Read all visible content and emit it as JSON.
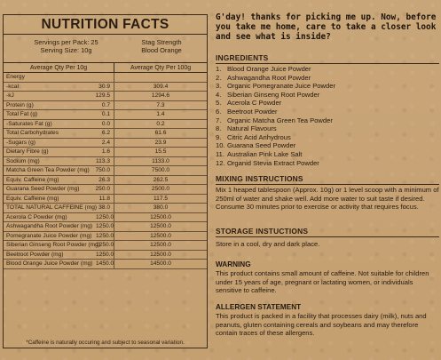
{
  "nutrition": {
    "title": "NUTRITION FACTS",
    "servings_per_pack": "Servings per Pack: 25",
    "serving_size": "Serving Size: 10g",
    "product_line1": "Stag Strength",
    "product_line2": "Blood Orange",
    "col_per_serve": "Average Qty Per 10g",
    "col_per_100": "Average Qty Per 100g",
    "rows": [
      {
        "name": "Energy",
        "serve": "",
        "per100": ""
      },
      {
        "name": "-kcal",
        "serve": "30.9",
        "per100": "309.4"
      },
      {
        "name": "-kJ",
        "serve": "129.5",
        "per100": "1294.6"
      },
      {
        "name": "Protein (g)",
        "serve": "0.7",
        "per100": "7.3"
      },
      {
        "name": "Total Fat (g)",
        "serve": "0.1",
        "per100": "1.4"
      },
      {
        "name": "-Saturates Fat (g)",
        "serve": "0.0",
        "per100": "0.2"
      },
      {
        "name": "Total Carbohydrates",
        "serve": "6.2",
        "per100": "61.6"
      },
      {
        "name": "-Sugars (g)",
        "serve": "2.4",
        "per100": "23.9"
      },
      {
        "name": "Dietary Fibre (g)",
        "serve": "1.6",
        "per100": "15.5"
      },
      {
        "name": "Sodium (mg)",
        "serve": "113.3",
        "per100": "1133.0"
      },
      {
        "name": "Matcha Green Tea Powder (mg)",
        "serve": "750.0",
        "per100": "7500.0"
      },
      {
        "name": "Equiv. Caffeine (mg)",
        "serve": "26.3",
        "per100": "262.5"
      },
      {
        "name": "Guarana Seed Powder (mg)",
        "serve": "250.0",
        "per100": "2500.0"
      },
      {
        "name": "Equiv. Caffeine (mg)",
        "serve": "11.8",
        "per100": "117.5"
      },
      {
        "name": "TOTAL NATURAL CAFFEINE (mg)",
        "serve": "38.0",
        "per100": "380.0",
        "wide": true
      },
      {
        "name": "Acerola C Powder (mg)",
        "serve": "1250.0",
        "per100": "12500.0",
        "wide": true
      },
      {
        "name": "Ashwagandha Root Powder (mg)",
        "serve": "1250.0",
        "per100": "12500.0",
        "wide": true
      },
      {
        "name": "Pomegranate Juice Powder (mg)",
        "serve": "1250.0",
        "per100": "12500.0",
        "wide": true
      },
      {
        "name": "Siberian Ginseng Root Powder (mg)",
        "serve": "1250.0",
        "per100": "12500.0",
        "wide": true
      },
      {
        "name": "Beetroot Powder (mg)",
        "serve": "1250.0",
        "per100": "12500.0",
        "wide": true
      },
      {
        "name": "Blood Orange Juice Powder (mg)",
        "serve": "1450.0",
        "per100": "14500.0",
        "wide": true
      }
    ],
    "footnote": "*Caffeine is naturally occuring and subject to seasonal variation."
  },
  "intro": "G'day! thanks for picking me up. Now, before you take me home, care to take a closer look and see what is inside?",
  "ingredients": {
    "heading": "INGREDIENTS",
    "items": [
      "Blood Orange Juice Powder",
      "Ashwagandha Root Powder",
      "Organic Pomegranate Juice Powder",
      "Siberian Ginseng Root Powder",
      "Acerola C Powder",
      "Beetroot Powder",
      "Organic Matcha Green Tea Powder",
      "Natural Flavours",
      "Citric Acid Anhydrous",
      "Guarana Seed Powder",
      "Australian Pink Lake Salt",
      "Organid Stevia Extract Powder"
    ]
  },
  "mixing": {
    "heading": "MIXING INSTRUCTIONS",
    "text": "Mix 1 heaped tablespoon (Approx. 10g) or 1 level scoop with a minimum of 250ml of water and shake well. Add more water to suit taste if desired. Consume 30 minutes prior to exercise or activity that requires focus."
  },
  "storage": {
    "heading": "STORAGE INSTUCTIONS",
    "text": "Store in a cool, dry and dark place."
  },
  "warning": {
    "heading": "WARNING",
    "text": "This product contains small amount of caffeine. Not suitable for children under 15 years of age, pregnant or lactating women, or individuals sensitive to caffeine."
  },
  "allergen": {
    "heading": "ALLERGEN STATEMENT",
    "text": "This product is packed in a facility that processes dairy (milk), nuts and peanuts, gluten containing cereals and soybeans and may therefore contain traces of these allergens."
  }
}
